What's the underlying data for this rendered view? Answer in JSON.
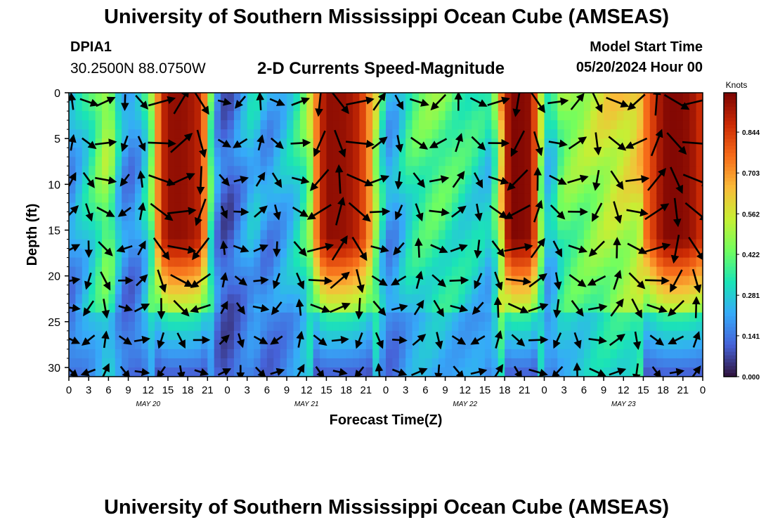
{
  "header": {
    "title": "University of Southern Mississippi Ocean Cube (AMSEAS)",
    "station_id": "DPIA1",
    "station_coords": "30.2500N  88.0750W",
    "subtitle": "2-D Currents Speed-Magnitude",
    "model_start_label": "Model Start Time",
    "model_start_value": "05/20/2024 Hour 00"
  },
  "footer": {
    "title": "University of Southern Mississippi Ocean Cube (AMSEAS)"
  },
  "chart_data": {
    "type": "heatmap",
    "xlabel": "Forecast Time(Z)",
    "ylabel": "Depth (ft)",
    "x_tick_labels": [
      "0",
      "3",
      "6",
      "9",
      "12",
      "15",
      "18",
      "21",
      "0",
      "3",
      "6",
      "9",
      "12",
      "15",
      "18",
      "21",
      "0",
      "3",
      "6",
      "9",
      "12",
      "15",
      "18",
      "21",
      "0",
      "3",
      "6",
      "9",
      "12",
      "15",
      "18",
      "21",
      "0"
    ],
    "date_labels": [
      "MAY 20",
      "MAY 21",
      "MAY 22",
      "MAY 23"
    ],
    "xlim_hours": [
      0,
      96
    ],
    "ylim_ft": [
      0,
      31
    ],
    "y_ticks": [
      0,
      5,
      10,
      15,
      20,
      25,
      30
    ],
    "colorbar": {
      "unit": "Knots",
      "tick_labels": [
        "0.000",
        "0.141",
        "0.281",
        "0.422",
        "0.562",
        "0.703",
        "0.844"
      ],
      "ticks": [
        0,
        0.141,
        0.281,
        0.422,
        0.562,
        0.703,
        0.844
      ],
      "range": [
        0,
        0.98
      ],
      "colormap": [
        "#30123b",
        "#4662d8",
        "#36aaf9",
        "#1ae4b6",
        "#72fe5e",
        "#c7ef34",
        "#faba39",
        "#f66b19",
        "#cb2a04",
        "#7a0403"
      ]
    },
    "speed_profile_hours": [
      0,
      2,
      4,
      5,
      6,
      7,
      8,
      10,
      12,
      13,
      14,
      15,
      16,
      18,
      20,
      21,
      22,
      23,
      24,
      25,
      26,
      28,
      30,
      32,
      34,
      36,
      37,
      38,
      39,
      40,
      42,
      44,
      46,
      47,
      48,
      49,
      50,
      51,
      52,
      53,
      54,
      56,
      58,
      60,
      62,
      64,
      65,
      66,
      67,
      68,
      69,
      70,
      71,
      72,
      73,
      74,
      75,
      76,
      78,
      80,
      82,
      84,
      86,
      88,
      90,
      92,
      94,
      96
    ],
    "speed_profile_knots": [
      0.2,
      0.3,
      0.42,
      0.5,
      0.55,
      0.4,
      0.22,
      0.18,
      0.38,
      0.6,
      0.85,
      0.94,
      0.95,
      0.94,
      0.88,
      0.6,
      0.25,
      0.15,
      0.1,
      0.15,
      0.2,
      0.3,
      0.2,
      0.25,
      0.32,
      0.45,
      0.62,
      0.85,
      0.95,
      0.95,
      0.94,
      0.88,
      0.65,
      0.45,
      0.25,
      0.22,
      0.28,
      0.35,
      0.4,
      0.42,
      0.44,
      0.45,
      0.42,
      0.38,
      0.35,
      0.3,
      0.55,
      0.85,
      0.97,
      0.97,
      0.96,
      0.95,
      0.7,
      0.35,
      0.25,
      0.42,
      0.48,
      0.5,
      0.52,
      0.56,
      0.6,
      0.62,
      0.65,
      0.8,
      0.96,
      0.97,
      0.95,
      0.85
    ],
    "arrow_columns_hours": [
      0.5,
      3,
      5.5,
      8.5,
      11,
      14,
      17,
      20,
      23.5,
      26,
      29,
      31.5,
      35,
      38,
      41,
      44,
      47,
      50,
      53,
      56,
      59,
      62,
      65,
      68,
      71,
      74,
      77,
      80,
      83,
      86,
      89,
      92,
      95
    ],
    "arrow_rows_ft": [
      1,
      5.5,
      9.5,
      13,
      17,
      20.5,
      23.5,
      27,
      30.5
    ]
  }
}
